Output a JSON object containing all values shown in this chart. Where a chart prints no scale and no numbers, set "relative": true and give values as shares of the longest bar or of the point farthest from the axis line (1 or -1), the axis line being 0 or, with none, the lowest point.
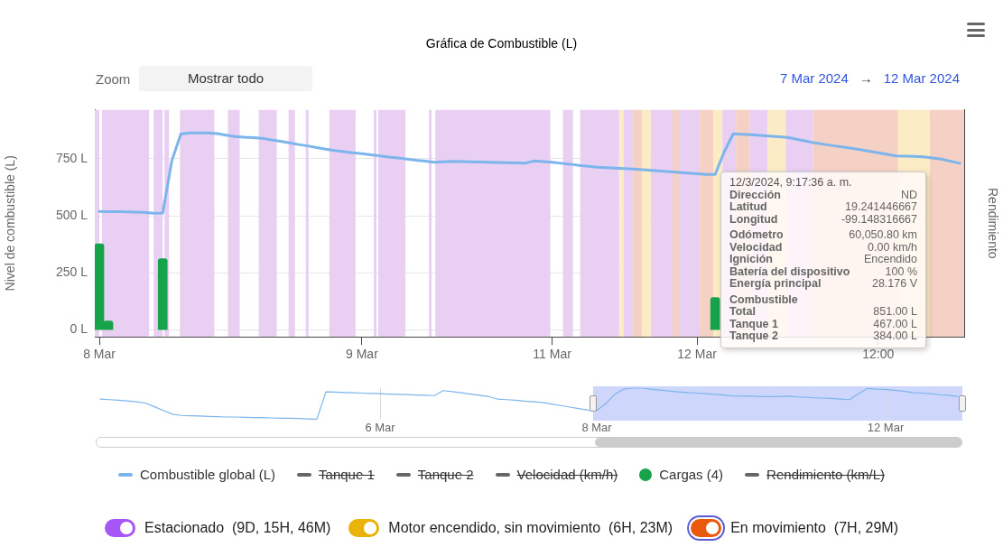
{
  "chart_data": [
    {
      "type": "line",
      "title": "Gráfica de Combustible (L)",
      "ylabel": "Nivel de combustible (L)",
      "y2label": "Rendimiento",
      "annotations": [
        "Zoom",
        "Mostrar todo",
        "7 Mar 2024",
        "→",
        "12 Mar 2024",
        "12/3/2024, 9:17:36 a. m.",
        "Dirección\tND",
        "Latitud\t19.241446667",
        "Longitud\t-99.148316667",
        "Odómetro\t60,050.80 km",
        "Velocidad\t0.00 km/h",
        "Ignición\tEncendido",
        "Batería del dispositivo\t100 %",
        "Energía principal\t28.176 V",
        "Combustible",
        "Total\t851.00 L",
        "Tanque 1\t467.00 L",
        "Tanque 2\t384.00 L",
        "Estacionado  (9D, 15H, 46M)",
        "Motor encendido, sin movimiento  (6H, 23M)",
        "En movimiento  (7H, 29M)"
      ],
      "categories": [
        "8 Mar",
        null,
        null,
        null,
        null,
        null,
        null,
        null,
        null,
        null,
        null,
        null,
        null,
        null,
        null,
        null,
        null,
        null,
        null,
        null,
        null,
        null,
        null,
        null,
        null,
        null,
        null,
        null,
        null,
        "9 Mar",
        null,
        null,
        null,
        null,
        null,
        null,
        null,
        null,
        null,
        null,
        null,
        null,
        null,
        null,
        null,
        null,
        null,
        null,
        null,
        null,
        "11 Mar",
        null,
        null,
        null,
        null,
        null,
        null,
        null,
        null,
        null,
        null,
        null,
        null,
        null,
        null,
        null,
        "12 Mar",
        null,
        null,
        null,
        null,
        null,
        null,
        null,
        null,
        null,
        null,
        null,
        null,
        null,
        null,
        null,
        null,
        null,
        null,
        null,
        "12:00",
        null,
        null,
        null,
        null,
        null,
        null,
        null,
        null,
        null
      ],
      "series": [
        {
          "name": "Combustible global (L)",
          "color": "#7cb5ec",
          "values": [
            519,
            518,
            518,
            517,
            516,
            515,
            511,
            512,
            740,
            858,
            863,
            863,
            863,
            860,
            853,
            847,
            844,
            842,
            839,
            832,
            826,
            819,
            812,
            806,
            799,
            792,
            786,
            781,
            776,
            772,
            767,
            762,
            757,
            753,
            748,
            743,
            739,
            734,
            736,
            738,
            737,
            736,
            735,
            734,
            733,
            732,
            731,
            730,
            740,
            737,
            734,
            730,
            726,
            721,
            717,
            713,
            711,
            709,
            707,
            705,
            702,
            699,
            696,
            693,
            690,
            687,
            684,
            681,
            681,
            780,
            859,
            857,
            855,
            852,
            849,
            846,
            843,
            835,
            827,
            819,
            813,
            807,
            802,
            796,
            790,
            783,
            776,
            769,
            762,
            761,
            760,
            758,
            753,
            748,
            739,
            730
          ]
        },
        {
          "name": "Tanque 1",
          "color": "#666666",
          "values": [
            null,
            null,
            null,
            null,
            null,
            null,
            null,
            null,
            null,
            null,
            null,
            null,
            null,
            null,
            null,
            null,
            null,
            null,
            null,
            null,
            null,
            null,
            null,
            null,
            null,
            null,
            null,
            null,
            null,
            null,
            null,
            null,
            null,
            null,
            null,
            null,
            null,
            null,
            null,
            null,
            null,
            null,
            null,
            null,
            null,
            null,
            null,
            null,
            null,
            null,
            null,
            null,
            null,
            null,
            null,
            null,
            null,
            null,
            null,
            null,
            null,
            null,
            null,
            null,
            null,
            null,
            null,
            null,
            null,
            null,
            null,
            null,
            null,
            null,
            null,
            null,
            null,
            null,
            null,
            null,
            null,
            null,
            null,
            null,
            null,
            null,
            null,
            null,
            null,
            null,
            null,
            null,
            null,
            null,
            null,
            null
          ]
        },
        {
          "name": "Tanque 2",
          "color": "#666666",
          "values": [
            null,
            null,
            null,
            null,
            null,
            null,
            null,
            null,
            null,
            null,
            null,
            null,
            null,
            null,
            null,
            null,
            null,
            null,
            null,
            null,
            null,
            null,
            null,
            null,
            null,
            null,
            null,
            null,
            null,
            null,
            null,
            null,
            null,
            null,
            null,
            null,
            null,
            null,
            null,
            null,
            null,
            null,
            null,
            null,
            null,
            null,
            null,
            null,
            null,
            null,
            null,
            null,
            null,
            null,
            null,
            null,
            null,
            null,
            null,
            null,
            null,
            null,
            null,
            null,
            null,
            null,
            null,
            null,
            null,
            null,
            null,
            null,
            null,
            null,
            null,
            null,
            null,
            null,
            null,
            null,
            null,
            null,
            null,
            null,
            null,
            null,
            null,
            null,
            null,
            null,
            null,
            null,
            null,
            null,
            null,
            null
          ]
        },
        {
          "name": "Velocidad (km/h)",
          "color": "#666666",
          "values": [
            null,
            null,
            null,
            null,
            null,
            null,
            null,
            null,
            null,
            null,
            null,
            null,
            null,
            null,
            null,
            null,
            null,
            null,
            null,
            null,
            null,
            null,
            null,
            null,
            null,
            null,
            null,
            null,
            null,
            null,
            null,
            null,
            null,
            null,
            null,
            null,
            null,
            null,
            null,
            null,
            null,
            null,
            null,
            null,
            null,
            null,
            null,
            null,
            null,
            null,
            null,
            null,
            null,
            null,
            null,
            null,
            null,
            null,
            null,
            null,
            null,
            null,
            null,
            null,
            null,
            null,
            null,
            null,
            null,
            null,
            null,
            null,
            null,
            null,
            null,
            null,
            null,
            null,
            null,
            null,
            null,
            null,
            null,
            null,
            null,
            null,
            null,
            null,
            null,
            null,
            null,
            null,
            null,
            null,
            null,
            null
          ]
        },
        {
          "name": "Cargas (4)",
          "type": "bar",
          "color": "#16a34a",
          "values": [
            377,
            40,
            null,
            null,
            null,
            null,
            null,
            312,
            null,
            null,
            null,
            null,
            null,
            null,
            null,
            null,
            null,
            null,
            null,
            null,
            null,
            null,
            null,
            null,
            null,
            null,
            null,
            null,
            null,
            null,
            null,
            null,
            null,
            null,
            null,
            null,
            null,
            null,
            null,
            null,
            null,
            null,
            null,
            null,
            null,
            null,
            null,
            null,
            null,
            null,
            null,
            null,
            null,
            null,
            null,
            null,
            null,
            null,
            null,
            null,
            null,
            null,
            null,
            null,
            null,
            null,
            null,
            null,
            142,
            null,
            null,
            null,
            null,
            null,
            null,
            null,
            null,
            null,
            null,
            null,
            null,
            null,
            null,
            null,
            null,
            null,
            null,
            null,
            null,
            null,
            null,
            null,
            null,
            null,
            null,
            null
          ]
        },
        {
          "name": "Rendimiento (km/L)",
          "color": "#666666",
          "values": [
            null,
            null,
            null,
            null,
            null,
            null,
            null,
            null,
            null,
            null,
            null,
            null,
            null,
            null,
            null,
            null,
            null,
            null,
            null,
            null,
            null,
            null,
            null,
            null,
            null,
            null,
            null,
            null,
            null,
            null,
            null,
            null,
            null,
            null,
            null,
            null,
            null,
            null,
            null,
            null,
            null,
            null,
            null,
            null,
            null,
            null,
            null,
            null,
            null,
            null,
            null,
            null,
            null,
            null,
            null,
            null,
            null,
            null,
            null,
            null,
            null,
            null,
            null,
            null,
            null,
            null,
            null,
            null,
            null,
            null,
            null,
            null,
            null,
            null,
            null,
            null,
            null,
            null,
            null,
            null,
            null,
            null,
            null,
            null,
            null,
            null,
            null,
            null,
            null,
            null,
            null,
            null,
            null,
            null,
            null,
            null
          ]
        }
      ],
      "ylim": [
        -30,
        965
      ],
      "yticks": [
        {
          "value": 0,
          "label": "0 L"
        },
        {
          "value": 250,
          "label": "250 L"
        },
        {
          "value": 500,
          "label": "500 L"
        },
        {
          "value": 750,
          "label": "750 L"
        }
      ],
      "grid": "y",
      "legend": "bottom"
    },
    {
      "type": "line",
      "relative": true,
      "categories": [
        null,
        null,
        null,
        null,
        null,
        null,
        null,
        null,
        null,
        null,
        null,
        null,
        null,
        null,
        null,
        null,
        null,
        null,
        null,
        null,
        null,
        null,
        null,
        null,
        null,
        null,
        null,
        null,
        null,
        null,
        null,
        "6 Mar",
        null,
        null,
        null,
        null,
        null,
        null,
        null,
        null,
        null,
        null,
        null,
        null,
        null,
        null,
        null,
        null,
        null,
        null,
        null,
        null,
        null,
        null,
        null,
        "8 Mar",
        null,
        null,
        null,
        null,
        null,
        null,
        null,
        null,
        null,
        null,
        null,
        null,
        null,
        null,
        null,
        null,
        null,
        null,
        null,
        null,
        null,
        null,
        null,
        null,
        null,
        null,
        null,
        null,
        null,
        null,
        null,
        "12 Mar",
        null,
        null,
        null,
        null,
        null,
        null,
        null,
        null
      ],
      "series": [
        {
          "color": "#7cb5ec",
          "values": [
            0.65,
            0.63,
            0.61,
            0.59,
            0.56,
            0.52,
            0.4,
            0.28,
            0.16,
            0.12,
            0.11,
            0.1,
            0.09,
            0.08,
            0.07,
            0.07,
            0.06,
            0.05,
            0.05,
            0.04,
            0.03,
            0.03,
            0.02,
            0.01,
            0,
            0.88,
            0.87,
            0.86,
            0.85,
            0.84,
            0.83,
            0.82,
            0.81,
            0.8,
            0.79,
            0.78,
            0.77,
            0.76,
            0.92,
            0.89,
            0.85,
            0.81,
            0.77,
            0.73,
            0.65,
            0.63,
            0.61,
            0.58,
            0.56,
            0.54,
            0.49,
            0.44,
            0.39,
            0.34,
            0.29,
            0.28,
            0.5,
            0.8,
            0.97,
            1.0,
            1.0,
            0.97,
            0.94,
            0.91,
            0.88,
            0.86,
            0.84,
            0.82,
            0.8,
            0.78,
            0.75,
            0.74,
            0.74,
            0.73,
            0.73,
            0.73,
            0.74,
            0.72,
            0.71,
            0.69,
            0.68,
            0.67,
            0.65,
            0.63,
            0.82,
            0.99,
            0.97,
            0.96,
            0.93,
            0.9,
            0.86,
            0.84,
            0.82,
            0.79,
            0.77,
            0.73
          ]
        }
      ],
      "grid": "x"
    }
  ]
}
